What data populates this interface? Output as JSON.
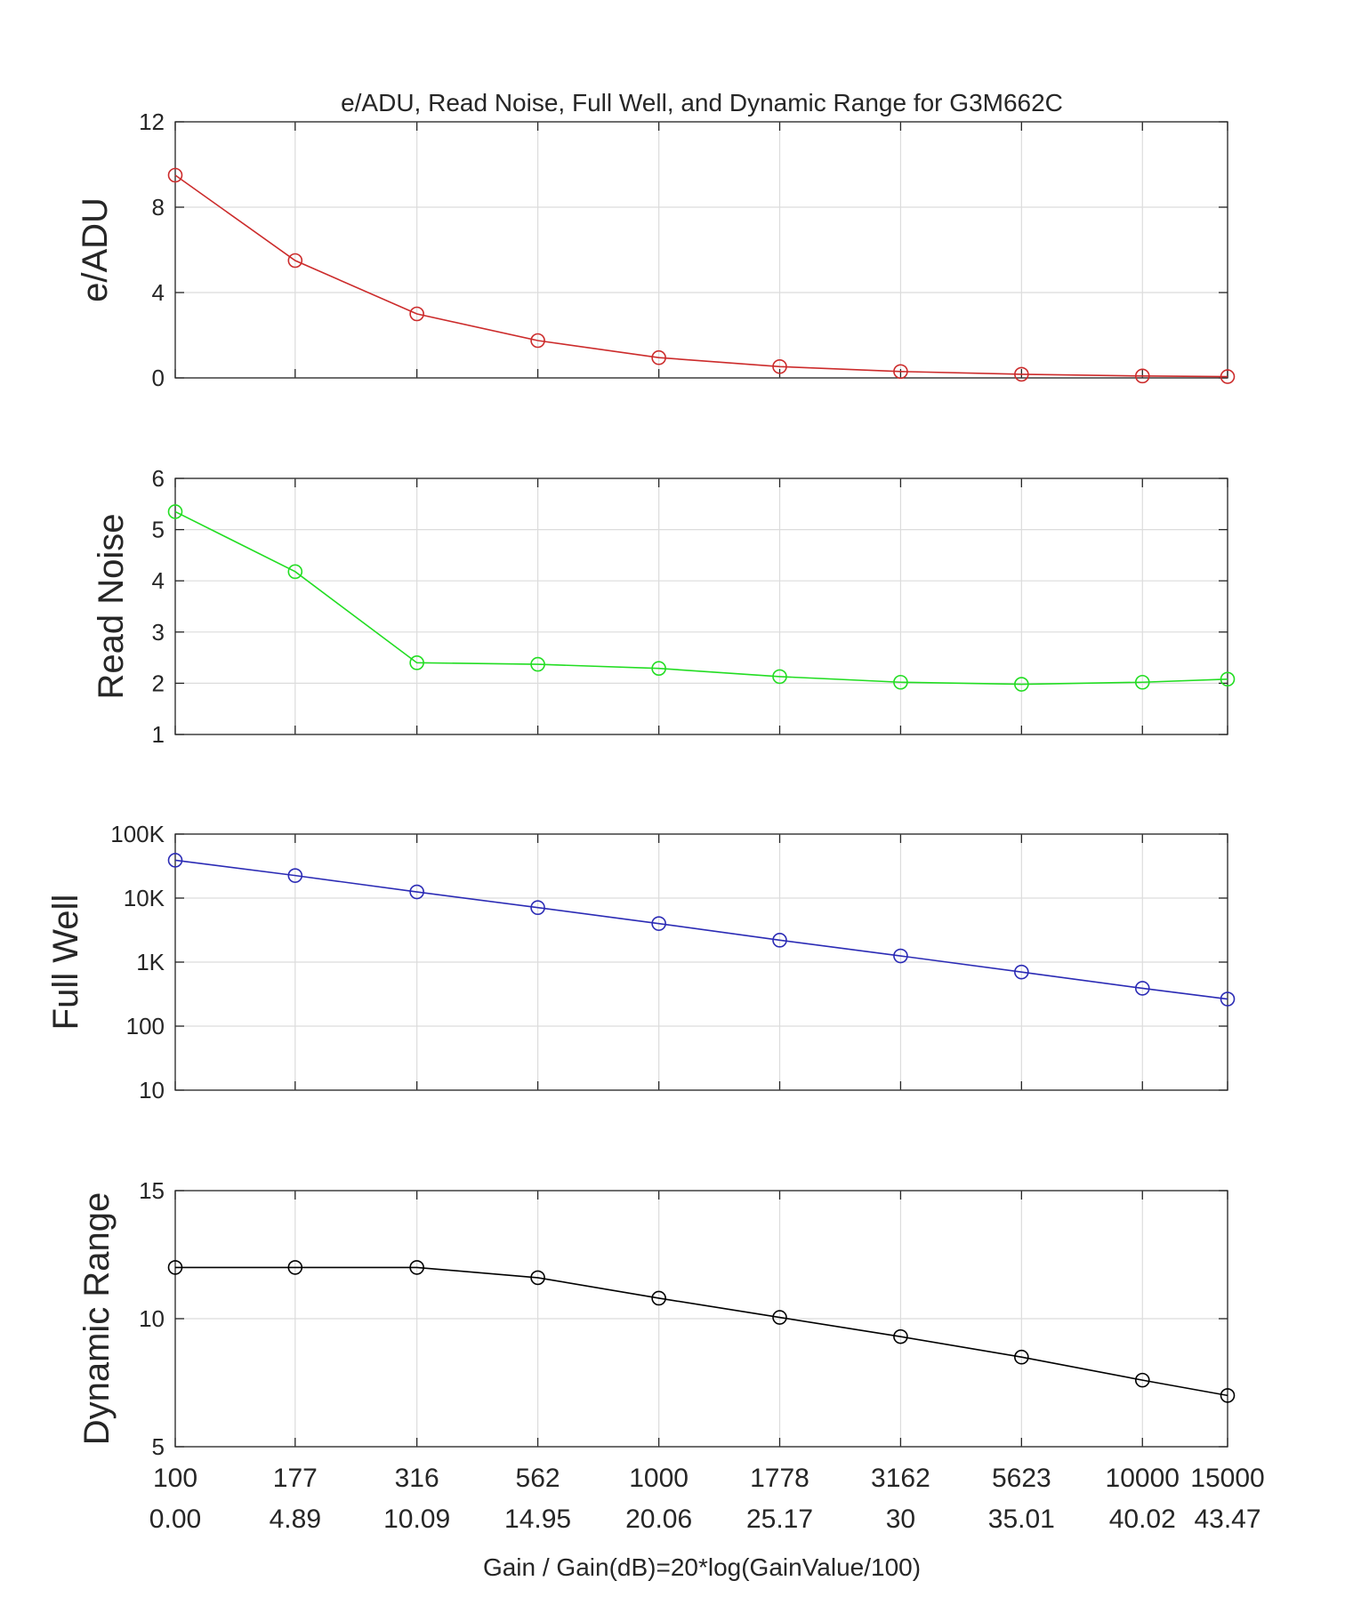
{
  "chart_data": {
    "type": "line",
    "title": "e/ADU, Read Noise, Full Well, and Dynamic Range for G3M662C",
    "xlabel": "Gain / Gain(dB)=20*log(GainValue/100)",
    "x_gain_labels": [
      "100",
      "177",
      "316",
      "562",
      "1000",
      "1778",
      "3162",
      "5623",
      "10000",
      "15000"
    ],
    "x_db_labels": [
      "0.00",
      "4.89",
      "10.09",
      "14.95",
      "20.06",
      "25.17",
      "30",
      "35.01",
      "40.02",
      "43.47"
    ],
    "x_gain": [
      100,
      177,
      316,
      562,
      1000,
      1778,
      3162,
      5623,
      10000,
      15000
    ],
    "x_scale": "log",
    "grid": true,
    "panels": [
      {
        "ylabel": "e/ADU",
        "yscale": "linear",
        "ylim": [
          0,
          12
        ],
        "yticks": [
          0,
          4,
          8,
          12
        ],
        "ytick_labels": [
          "0",
          "4",
          "8",
          "12"
        ],
        "color": "#cc2b2b",
        "values": [
          9.5,
          5.5,
          3.0,
          1.75,
          0.95,
          0.53,
          0.3,
          0.17,
          0.09,
          0.06
        ]
      },
      {
        "ylabel": "Read Noise",
        "yscale": "linear",
        "ylim": [
          1,
          6
        ],
        "yticks": [
          1,
          2,
          3,
          4,
          5,
          6
        ],
        "ytick_labels": [
          "1",
          "2",
          "3",
          "4",
          "5",
          "6"
        ],
        "color": "#22dd22",
        "values": [
          5.35,
          4.18,
          2.4,
          2.37,
          2.29,
          2.13,
          2.02,
          1.98,
          2.02,
          2.08
        ]
      },
      {
        "ylabel": "Full Well",
        "yscale": "log",
        "ylim": [
          10,
          100000
        ],
        "yticks": [
          10,
          100,
          1000,
          10000,
          100000
        ],
        "ytick_labels": [
          "10",
          "100",
          "1K",
          "10K",
          "100K"
        ],
        "color": "#2b2bb5",
        "values": [
          39000,
          22500,
          12500,
          7100,
          4000,
          2200,
          1250,
          700,
          390,
          265
        ]
      },
      {
        "ylabel": "Dynamic Range",
        "yscale": "linear",
        "ylim": [
          5,
          15
        ],
        "yticks": [
          5,
          10,
          15
        ],
        "ytick_labels": [
          "5",
          "10",
          "15"
        ],
        "color": "#000000",
        "values": [
          12.0,
          12.0,
          12.0,
          11.6,
          10.8,
          10.05,
          9.3,
          8.5,
          7.6,
          7.0
        ]
      }
    ]
  }
}
